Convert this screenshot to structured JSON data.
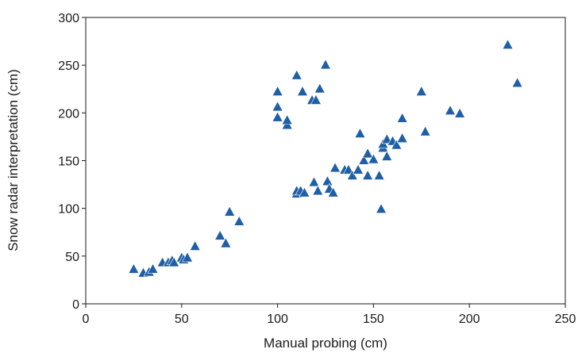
{
  "chart_data": {
    "type": "scatter",
    "title": "",
    "xlabel": "Manual probing (cm)",
    "ylabel": "Snow radar interpretation (cm)",
    "xlim": [
      0,
      250
    ],
    "ylim": [
      0,
      300
    ],
    "xticks": [
      "0",
      "50",
      "100",
      "150",
      "200",
      "250"
    ],
    "yticks": [
      "0",
      "50",
      "100",
      "150",
      "200",
      "250",
      "300"
    ],
    "grid": false,
    "legend": "none",
    "marker": "triangle",
    "marker_color": "#1f5fa6",
    "points": [
      [
        25,
        36
      ],
      [
        30,
        32
      ],
      [
        33,
        33
      ],
      [
        35,
        36
      ],
      [
        40,
        43
      ],
      [
        43,
        43
      ],
      [
        45,
        45
      ],
      [
        46,
        43
      ],
      [
        50,
        48
      ],
      [
        51,
        46
      ],
      [
        53,
        48
      ],
      [
        57,
        60
      ],
      [
        70,
        71
      ],
      [
        73,
        63
      ],
      [
        75,
        96
      ],
      [
        80,
        86
      ],
      [
        100,
        222
      ],
      [
        100,
        206
      ],
      [
        100,
        195
      ],
      [
        105,
        187
      ],
      [
        105,
        192
      ],
      [
        110,
        239
      ],
      [
        113,
        222
      ],
      [
        118,
        213
      ],
      [
        120,
        213
      ],
      [
        122,
        225
      ],
      [
        125,
        250
      ],
      [
        110,
        115
      ],
      [
        110,
        118
      ],
      [
        112,
        118
      ],
      [
        114,
        116
      ],
      [
        119,
        127
      ],
      [
        121,
        118
      ],
      [
        126,
        128
      ],
      [
        127,
        120
      ],
      [
        129,
        116
      ],
      [
        130,
        142
      ],
      [
        135,
        140
      ],
      [
        137,
        140
      ],
      [
        139,
        134
      ],
      [
        142,
        140
      ],
      [
        143,
        178
      ],
      [
        145,
        150
      ],
      [
        147,
        157
      ],
      [
        147,
        134
      ],
      [
        150,
        151
      ],
      [
        153,
        134
      ],
      [
        154,
        99
      ],
      [
        155,
        163
      ],
      [
        155,
        167
      ],
      [
        157,
        154
      ],
      [
        157,
        172
      ],
      [
        160,
        170
      ],
      [
        162,
        166
      ],
      [
        165,
        173
      ],
      [
        165,
        194
      ],
      [
        175,
        222
      ],
      [
        177,
        180
      ],
      [
        190,
        202
      ],
      [
        195,
        199
      ],
      [
        220,
        271
      ],
      [
        225,
        231
      ]
    ]
  }
}
